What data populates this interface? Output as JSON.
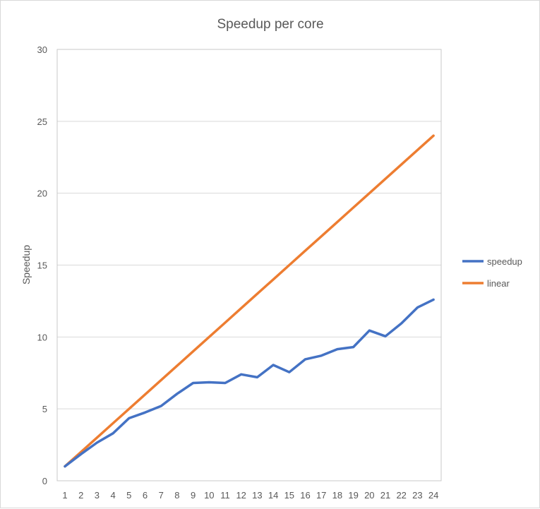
{
  "chart_data": {
    "type": "line",
    "title": "Speedup per core",
    "xlabel": "",
    "ylabel": "Speedup",
    "x": [
      1,
      2,
      3,
      4,
      5,
      6,
      7,
      8,
      9,
      10,
      11,
      12,
      13,
      14,
      15,
      16,
      17,
      18,
      19,
      20,
      21,
      22,
      23,
      24
    ],
    "ylim": [
      0,
      30
    ],
    "yticks": [
      0,
      5,
      10,
      15,
      20,
      25,
      30
    ],
    "grid": true,
    "legend": "right",
    "series": [
      {
        "name": "speedup",
        "color": "#4472c4",
        "values": [
          1.0,
          1.85,
          2.65,
          3.3,
          4.35,
          4.75,
          5.2,
          6.05,
          6.8,
          6.85,
          6.8,
          7.4,
          7.2,
          8.05,
          7.55,
          8.45,
          8.7,
          9.15,
          9.3,
          10.45,
          10.05,
          10.95,
          12.05,
          12.6
        ]
      },
      {
        "name": "linear",
        "color": "#ed7d31",
        "values": [
          1,
          2,
          3,
          4,
          5,
          6,
          7,
          8,
          9,
          10,
          11,
          12,
          13,
          14,
          15,
          16,
          17,
          18,
          19,
          20,
          21,
          22,
          23,
          24
        ]
      }
    ]
  }
}
